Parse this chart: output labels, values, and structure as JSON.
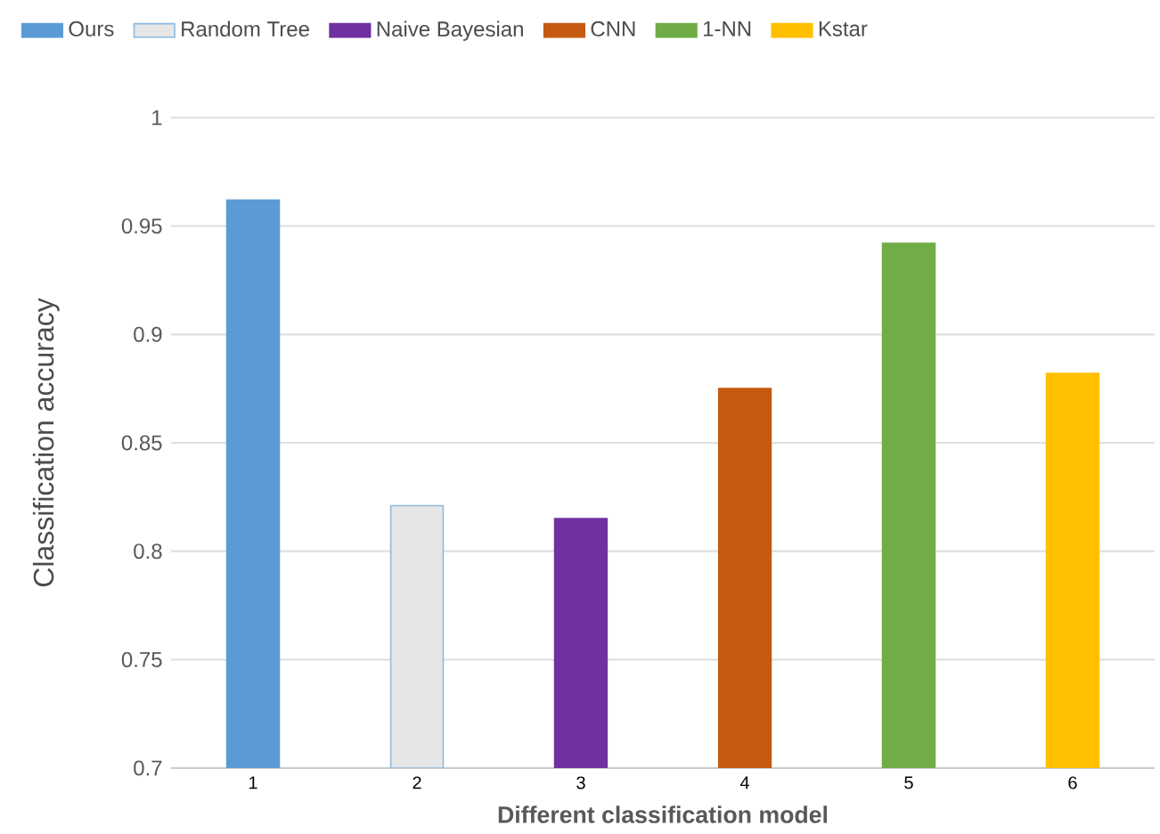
{
  "chart_data": {
    "type": "bar",
    "xlabel": "Different classification model",
    "ylabel": "Classification accuracy",
    "categories": [
      "1",
      "2",
      "3",
      "4",
      "5",
      "6"
    ],
    "series": [
      {
        "name": "Ours",
        "color": "#5b9bd5",
        "values": [
          0.962,
          null,
          null,
          null,
          null,
          null
        ]
      },
      {
        "name": "Random Tree",
        "color": "#e7e6e6",
        "values": [
          null,
          0.821,
          null,
          null,
          null,
          null
        ]
      },
      {
        "name": "Naive Bayesian",
        "color": "#7030a0",
        "values": [
          null,
          null,
          0.815,
          null,
          null,
          null
        ]
      },
      {
        "name": "CNN",
        "color": "#c55a11",
        "values": [
          null,
          null,
          null,
          0.875,
          null,
          null
        ]
      },
      {
        "name": "1-NN",
        "color": "#70ad47",
        "values": [
          null,
          null,
          null,
          null,
          0.942,
          null
        ]
      },
      {
        "name": "Kstar",
        "color": "#ffc000",
        "values": [
          null,
          null,
          null,
          null,
          null,
          0.882
        ]
      }
    ],
    "ylim": [
      0.7,
      1
    ],
    "yticks": [
      0.7,
      0.75,
      0.8,
      0.85,
      0.9,
      0.95,
      1
    ],
    "grid": "y",
    "legend": "top"
  }
}
